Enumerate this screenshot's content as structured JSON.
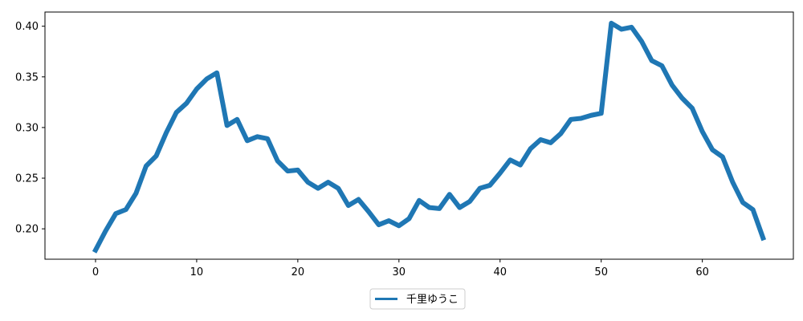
{
  "chart_data": {
    "type": "line",
    "title": "",
    "xlabel": "",
    "ylabel": "",
    "xlim": [
      -5,
      69
    ],
    "ylim": [
      0.17,
      0.414
    ],
    "x_ticks": [
      0,
      10,
      20,
      30,
      40,
      50,
      60
    ],
    "x_tick_labels": [
      "0",
      "10",
      "20",
      "30",
      "40",
      "50",
      "60"
    ],
    "y_ticks": [
      0.2,
      0.25,
      0.3,
      0.35,
      0.4
    ],
    "y_tick_labels": [
      "0.20",
      "0.25",
      "0.30",
      "0.35",
      "0.40"
    ],
    "grid": false,
    "legend_position": "bottom-center (below plot)",
    "series": [
      {
        "name": "千里ゆうこ",
        "color": "#1f77b4",
        "x": [
          0,
          1,
          2,
          3,
          4,
          5,
          6,
          7,
          8,
          9,
          10,
          11,
          12,
          13,
          14,
          15,
          16,
          17,
          18,
          19,
          20,
          21,
          22,
          23,
          24,
          25,
          26,
          27,
          28,
          29,
          30,
          31,
          32,
          33,
          34,
          35,
          36,
          37,
          38,
          39,
          40,
          41,
          42,
          43,
          44,
          45,
          46,
          47,
          48,
          49,
          50,
          51,
          52,
          53,
          54,
          55,
          56,
          57,
          58,
          59,
          60,
          61,
          62,
          63,
          64,
          65,
          66
        ],
        "values": [
          0.179,
          0.198,
          0.215,
          0.219,
          0.235,
          0.262,
          0.272,
          0.295,
          0.315,
          0.324,
          0.338,
          0.348,
          0.354,
          0.302,
          0.308,
          0.287,
          0.291,
          0.289,
          0.267,
          0.257,
          0.258,
          0.246,
          0.24,
          0.246,
          0.24,
          0.223,
          0.229,
          0.217,
          0.204,
          0.208,
          0.203,
          0.21,
          0.228,
          0.221,
          0.22,
          0.234,
          0.221,
          0.227,
          0.24,
          0.243,
          0.255,
          0.268,
          0.263,
          0.279,
          0.288,
          0.285,
          0.294,
          0.308,
          0.309,
          0.312,
          0.314,
          0.403,
          0.397,
          0.399,
          0.385,
          0.366,
          0.361,
          0.342,
          0.329,
          0.319,
          0.296,
          0.278,
          0.271,
          0.246,
          0.226,
          0.219,
          0.191
        ]
      }
    ]
  }
}
